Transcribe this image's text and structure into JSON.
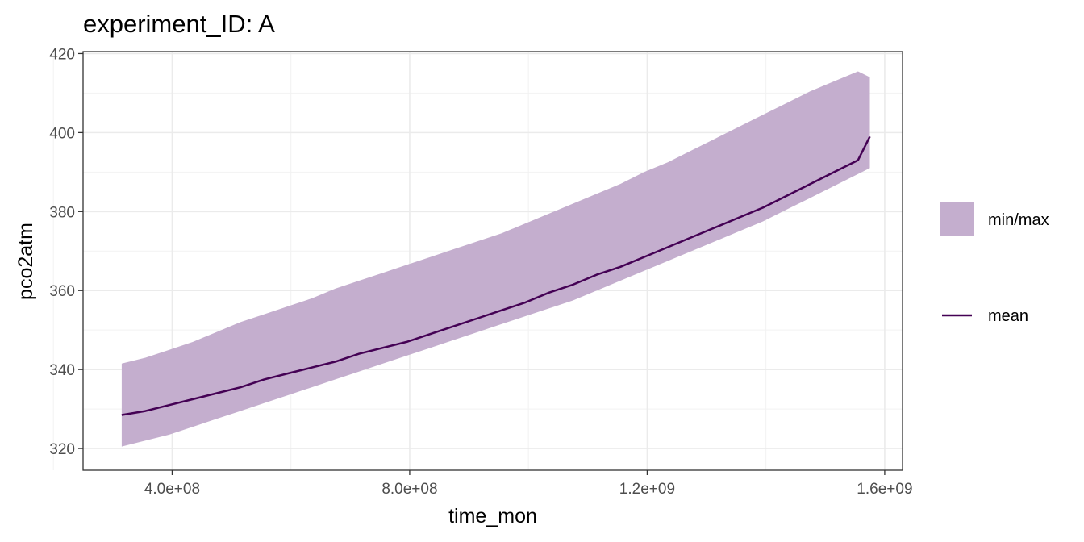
{
  "chart_data": {
    "type": "area",
    "title": "experiment_ID: A",
    "xlabel": "time_mon",
    "ylabel": "pco2atm",
    "xlim": [
      250000000,
      1630000000
    ],
    "ylim": [
      314.5,
      420.5
    ],
    "x_ticks": [
      400000000,
      800000000,
      1200000000,
      1600000000
    ],
    "x_tick_labels": [
      "4.0e+08",
      "8.0e+08",
      "1.2e+09",
      "1.6e+09"
    ],
    "y_ticks": [
      320,
      340,
      360,
      380,
      400,
      420
    ],
    "y_tick_labels": [
      "320",
      "340",
      "360",
      "380",
      "400",
      "420"
    ],
    "grid": true,
    "legend_position": "right",
    "series": [
      {
        "name": "min/max",
        "kind": "ribbon",
        "color": "#c4aece",
        "x": [
          315000000,
          355000000,
          395000000,
          435000000,
          475000000,
          515000000,
          555000000,
          595000000,
          635000000,
          675000000,
          715000000,
          755000000,
          795000000,
          835000000,
          875000000,
          915000000,
          955000000,
          995000000,
          1035000000,
          1075000000,
          1115000000,
          1155000000,
          1195000000,
          1235000000,
          1275000000,
          1315000000,
          1355000000,
          1395000000,
          1435000000,
          1475000000,
          1515000000,
          1555000000,
          1575000000
        ],
        "ymin": [
          320.5,
          322,
          323.5,
          325.5,
          327.5,
          329.5,
          331.5,
          333.5,
          335.5,
          337.5,
          339.5,
          341.5,
          343.5,
          345.5,
          347.5,
          349.5,
          351.5,
          353.5,
          355.5,
          357.5,
          360,
          362.5,
          365,
          367.5,
          370,
          372.5,
          375,
          377.5,
          380.5,
          383.5,
          386.5,
          389.5,
          391
        ],
        "ymax": [
          341.5,
          343,
          345,
          347,
          349.5,
          352,
          354,
          356,
          358,
          360.5,
          362.5,
          364.5,
          366.5,
          368.5,
          370.5,
          372.5,
          374.5,
          377,
          379.5,
          382,
          384.5,
          387,
          390,
          392.5,
          395.5,
          398.5,
          401.5,
          404.5,
          407.5,
          410.5,
          413,
          415.5,
          414
        ]
      },
      {
        "name": "mean",
        "kind": "line",
        "color": "#440154",
        "x": [
          315000000,
          355000000,
          395000000,
          435000000,
          475000000,
          515000000,
          555000000,
          595000000,
          635000000,
          675000000,
          715000000,
          755000000,
          795000000,
          835000000,
          875000000,
          915000000,
          955000000,
          995000000,
          1035000000,
          1075000000,
          1115000000,
          1155000000,
          1195000000,
          1235000000,
          1275000000,
          1315000000,
          1355000000,
          1395000000,
          1435000000,
          1475000000,
          1515000000,
          1555000000,
          1575000000
        ],
        "y": [
          328.5,
          329.5,
          331,
          332.5,
          334,
          335.5,
          337.5,
          339,
          340.5,
          342,
          344,
          345.5,
          347,
          349,
          351,
          353,
          355,
          357,
          359.5,
          361.5,
          364,
          366,
          368.5,
          371,
          373.5,
          376,
          378.5,
          381,
          384,
          387,
          390,
          393,
          399
        ]
      }
    ]
  },
  "legend": {
    "fill_label": "min/max",
    "line_label": "mean"
  },
  "colors": {
    "ribbon": "#c4aece",
    "line": "#440154",
    "grid_major": "#ebebeb",
    "grid_minor": "#f2f2f2",
    "panel_border": "#333333"
  }
}
